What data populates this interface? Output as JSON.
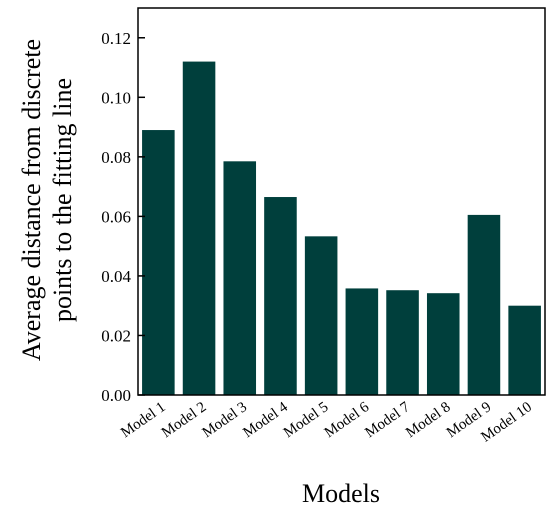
{
  "chart_data": {
    "type": "bar",
    "categories": [
      "Model 1",
      "Model 2",
      "Model 3",
      "Model 4",
      "Model 5",
      "Model 6",
      "Model 7",
      "Model 8",
      "Model 9",
      "Model 10"
    ],
    "values": [
      0.089,
      0.112,
      0.0785,
      0.0665,
      0.0533,
      0.0358,
      0.0352,
      0.0342,
      0.0605,
      0.03
    ],
    "xlabel": "Models",
    "ylabel_lines": [
      "Average distance from discrete",
      "points to the fitting line"
    ],
    "ylim": [
      0,
      0.13
    ],
    "yticks": [
      "0.00",
      "0.02",
      "0.04",
      "0.06",
      "0.08",
      "0.10",
      "0.12"
    ],
    "grid": false,
    "bar_color": "#003f3c"
  }
}
